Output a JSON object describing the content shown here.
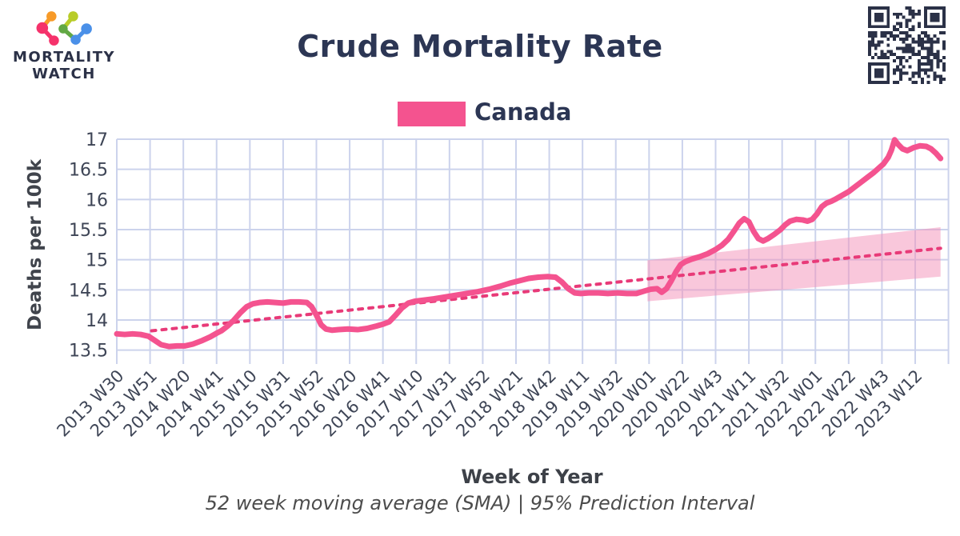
{
  "logo": {
    "line1": "MORTALITY",
    "line2": "WATCH",
    "node_colors": [
      "#f5326b",
      "#f5326b",
      "#f79a28",
      "#b8cc28",
      "#62a844",
      "#4a90e8",
      "#4a90e8"
    ]
  },
  "title": "Crude Mortality Rate",
  "legend": {
    "label": "Canada",
    "color": "#f4538f"
  },
  "caption": "52 week moving average (SMA) | 95% Prediction Interval",
  "colors": {
    "accent_pink": "#f4538f",
    "trend_pink": "#e83a78",
    "band_pink": "#f48fb8",
    "grid": "#ccd3ec",
    "navy_text": "#2c3654",
    "tick_text": "#3e4556",
    "qr": "#2b3147"
  },
  "chart_data": {
    "type": "line",
    "title": "Crude Mortality Rate",
    "xlabel": "Week of Year",
    "ylabel": "Deaths per 100k",
    "subtitle": "52 week moving average (SMA) | 95% Prediction Interval",
    "grid": true,
    "legend_position": "top-center",
    "x_unit": "weeks since 2013 W30",
    "x_tick_interval_weeks": 21,
    "x_ticks": [
      "2013 W30",
      "2013 W51",
      "2014 W20",
      "2014 W41",
      "2015 W10",
      "2015 W31",
      "2015 W52",
      "2016 W20",
      "2016 W41",
      "2017 W10",
      "2017 W31",
      "2017 W52",
      "2018 W21",
      "2018 W42",
      "2019 W11",
      "2019 W32",
      "2020 W01",
      "2020 W22",
      "2020 W43",
      "2021 W11",
      "2021 W32",
      "2022 W01",
      "2022 W22",
      "2022 W43",
      "2023 W12"
    ],
    "y_ticks": [
      13.5,
      14,
      14.5,
      15,
      15.5,
      16,
      16.5,
      17
    ],
    "ylim": [
      13.27,
      17.05
    ],
    "series": [
      {
        "name": "Canada",
        "color": "#f4538f",
        "points": [
          [
            0,
            13.77
          ],
          [
            5,
            13.76
          ],
          [
            10,
            13.77
          ],
          [
            15,
            13.76
          ],
          [
            20,
            13.73
          ],
          [
            24,
            13.66
          ],
          [
            28,
            13.59
          ],
          [
            33,
            13.56
          ],
          [
            38,
            13.57
          ],
          [
            43,
            13.57
          ],
          [
            48,
            13.6
          ],
          [
            54,
            13.66
          ],
          [
            59,
            13.72
          ],
          [
            63,
            13.78
          ],
          [
            66,
            13.82
          ],
          [
            70,
            13.9
          ],
          [
            74,
            14.0
          ],
          [
            78,
            14.12
          ],
          [
            82,
            14.22
          ],
          [
            86,
            14.27
          ],
          [
            90,
            14.29
          ],
          [
            95,
            14.3
          ],
          [
            100,
            14.29
          ],
          [
            105,
            14.28
          ],
          [
            110,
            14.3
          ],
          [
            115,
            14.3
          ],
          [
            120,
            14.29
          ],
          [
            123,
            14.22
          ],
          [
            126,
            14.08
          ],
          [
            129,
            13.92
          ],
          [
            132,
            13.85
          ],
          [
            136,
            13.83
          ],
          [
            140,
            13.84
          ],
          [
            146,
            13.85
          ],
          [
            152,
            13.84
          ],
          [
            158,
            13.86
          ],
          [
            164,
            13.9
          ],
          [
            168,
            13.93
          ],
          [
            172,
            13.97
          ],
          [
            176,
            14.08
          ],
          [
            180,
            14.2
          ],
          [
            184,
            14.28
          ],
          [
            188,
            14.31
          ],
          [
            194,
            14.33
          ],
          [
            200,
            14.35
          ],
          [
            207,
            14.38
          ],
          [
            214,
            14.41
          ],
          [
            221,
            14.44
          ],
          [
            228,
            14.47
          ],
          [
            235,
            14.51
          ],
          [
            242,
            14.56
          ],
          [
            248,
            14.61
          ],
          [
            254,
            14.65
          ],
          [
            260,
            14.69
          ],
          [
            266,
            14.71
          ],
          [
            272,
            14.72
          ],
          [
            277,
            14.71
          ],
          [
            281,
            14.63
          ],
          [
            285,
            14.52
          ],
          [
            289,
            14.45
          ],
          [
            293,
            14.44
          ],
          [
            298,
            14.45
          ],
          [
            304,
            14.45
          ],
          [
            310,
            14.44
          ],
          [
            316,
            14.45
          ],
          [
            322,
            14.44
          ],
          [
            328,
            14.44
          ],
          [
            333,
            14.48
          ],
          [
            337,
            14.51
          ],
          [
            341,
            14.52
          ],
          [
            344,
            14.46
          ],
          [
            347,
            14.52
          ],
          [
            350,
            14.65
          ],
          [
            353,
            14.8
          ],
          [
            356,
            14.92
          ],
          [
            359,
            14.97
          ],
          [
            363,
            15.01
          ],
          [
            368,
            15.05
          ],
          [
            373,
            15.1
          ],
          [
            378,
            15.17
          ],
          [
            382,
            15.24
          ],
          [
            386,
            15.34
          ],
          [
            390,
            15.49
          ],
          [
            393,
            15.61
          ],
          [
            396,
            15.68
          ],
          [
            399,
            15.63
          ],
          [
            402,
            15.47
          ],
          [
            405,
            15.35
          ],
          [
            408,
            15.31
          ],
          [
            411,
            15.35
          ],
          [
            415,
            15.42
          ],
          [
            419,
            15.5
          ],
          [
            422,
            15.58
          ],
          [
            425,
            15.64
          ],
          [
            429,
            15.67
          ],
          [
            433,
            15.66
          ],
          [
            436,
            15.64
          ],
          [
            439,
            15.67
          ],
          [
            442,
            15.76
          ],
          [
            445,
            15.88
          ],
          [
            448,
            15.94
          ],
          [
            451,
            15.97
          ],
          [
            454,
            16.01
          ],
          [
            458,
            16.07
          ],
          [
            462,
            16.13
          ],
          [
            466,
            16.21
          ],
          [
            470,
            16.29
          ],
          [
            474,
            16.37
          ],
          [
            478,
            16.45
          ],
          [
            481,
            16.52
          ],
          [
            484,
            16.59
          ],
          [
            487,
            16.7
          ],
          [
            489,
            16.82
          ],
          [
            491,
            16.99
          ],
          [
            493,
            16.92
          ],
          [
            496,
            16.84
          ],
          [
            499,
            16.81
          ],
          [
            503,
            16.86
          ],
          [
            507,
            16.89
          ],
          [
            511,
            16.88
          ],
          [
            514,
            16.84
          ],
          [
            517,
            16.77
          ],
          [
            520,
            16.68
          ]
        ]
      }
    ],
    "trend": {
      "name": "52-week SMA linear trend",
      "style": "dashed",
      "color": "#e83a78",
      "points": [
        [
          22,
          13.82
        ],
        [
          520,
          15.19
        ]
      ]
    },
    "prediction_interval": {
      "level": "95%",
      "color": "#f48fb8",
      "opacity": 0.5,
      "points_week_lower_upper": [
        [
          335,
          14.31,
          14.99
        ],
        [
          520,
          14.72,
          15.54
        ]
      ]
    }
  }
}
